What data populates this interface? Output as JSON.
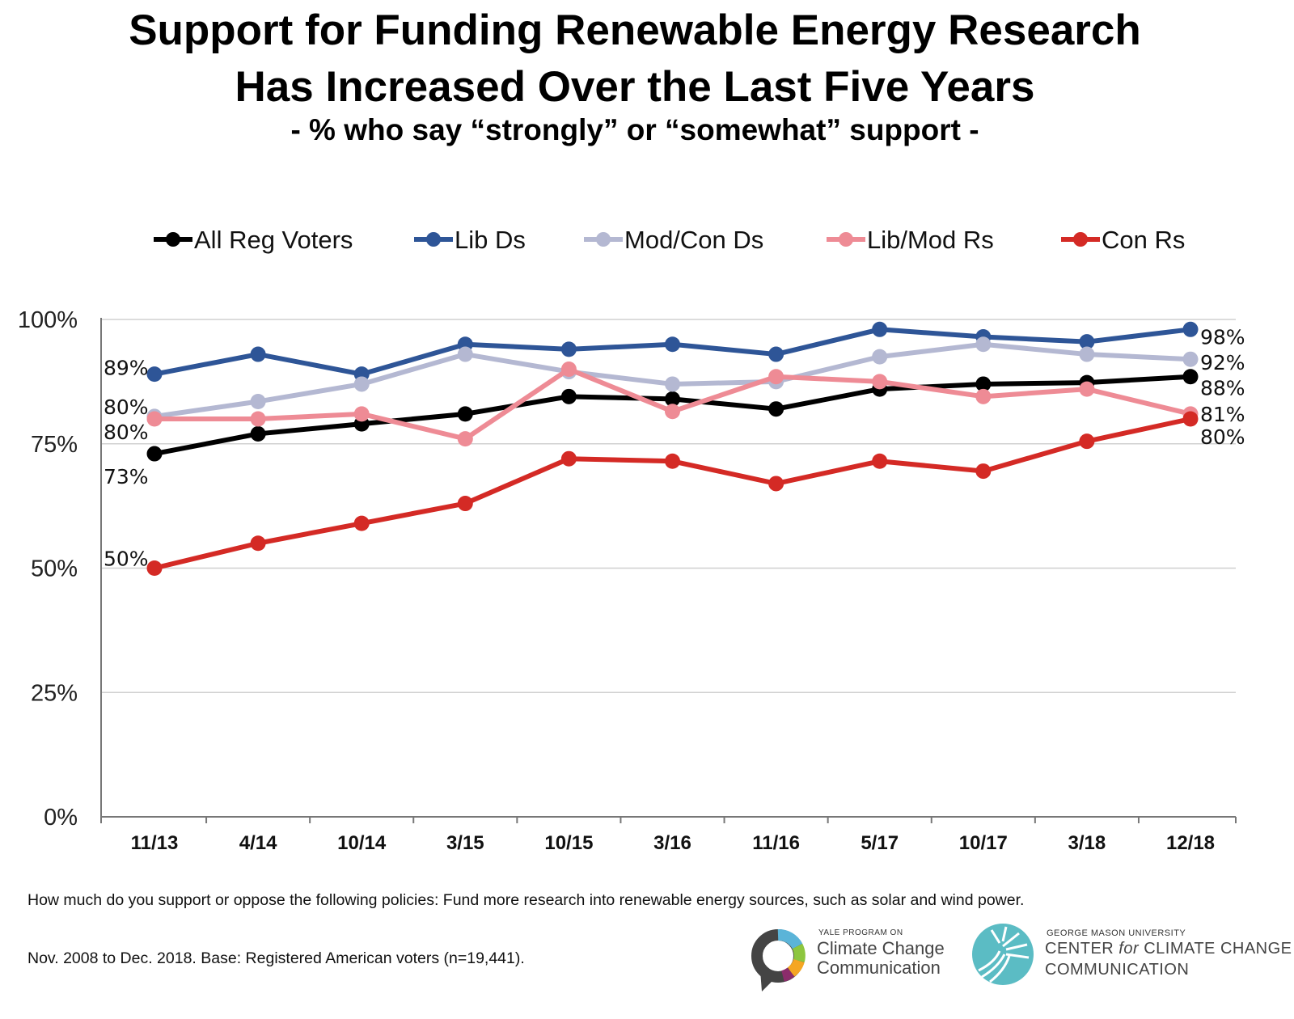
{
  "title_line1": "Support for Funding Renewable Energy Research",
  "title_line2": "Has Increased Over the Last Five Years",
  "subtitle": "- % who say “strongly” or “somewhat” support -",
  "footnote_question": "How much do you support or oppose the following policies: Fund more research into renewable energy sources, such as solar and wind power.",
  "footnote_base": "Nov. 2008 to Dec. 2018. Base: Registered American voters (n=19,441).",
  "logos": {
    "yale_small": "YALE PROGRAM ON",
    "yale_line1": "Climate Change",
    "yale_line2": "Communication",
    "gmu_small": "GEORGE MASON UNIVERSITY",
    "gmu_line1a": "CENTER ",
    "gmu_line1b": "for",
    "gmu_line1c": " CLIMATE CHANGE",
    "gmu_line2": "COMMUNICATION"
  },
  "chart_data": {
    "type": "line",
    "categories": [
      "11/13",
      "4/14",
      "10/14",
      "3/15",
      "10/15",
      "3/16",
      "11/16",
      "5/17",
      "10/17",
      "3/18",
      "12/18"
    ],
    "ylim": [
      0,
      100
    ],
    "yticks": [
      0,
      25,
      50,
      75,
      100
    ],
    "ytick_labels": [
      "0%",
      "25%",
      "50%",
      "75%",
      "100%"
    ],
    "grid": true,
    "legend_position": "top",
    "series": [
      {
        "name": "All Reg Voters",
        "color": "#000000",
        "values": [
          73,
          77,
          79,
          81,
          84.5,
          84,
          82,
          86,
          87,
          87.3,
          88.5
        ],
        "start_label": "73%",
        "end_label": "88%"
      },
      {
        "name": "Lib Ds",
        "color": "#2e5597",
        "values": [
          89,
          93,
          89,
          95,
          94,
          95,
          93,
          98,
          96.5,
          95.5,
          98
        ],
        "start_label": "89%",
        "end_label": "98%"
      },
      {
        "name": "Mod/Con Ds",
        "color": "#b4b8d2",
        "values": [
          80.5,
          83.5,
          87,
          93,
          89.5,
          87,
          87.5,
          92.5,
          95,
          93,
          92
        ],
        "start_label": "80%",
        "end_label": "92%"
      },
      {
        "name": "Lib/Mod Rs",
        "color": "#ee8b95",
        "values": [
          80,
          80,
          81,
          76,
          90,
          81.5,
          88.5,
          87.5,
          84.5,
          86,
          81
        ],
        "start_label": "80%",
        "end_label": "81%"
      },
      {
        "name": "Con Rs",
        "color": "#d42a25",
        "values": [
          50,
          55,
          59,
          63,
          72,
          71.5,
          67,
          71.5,
          69.5,
          75.5,
          80
        ],
        "start_label": "50%",
        "end_label": "80%"
      }
    ]
  }
}
